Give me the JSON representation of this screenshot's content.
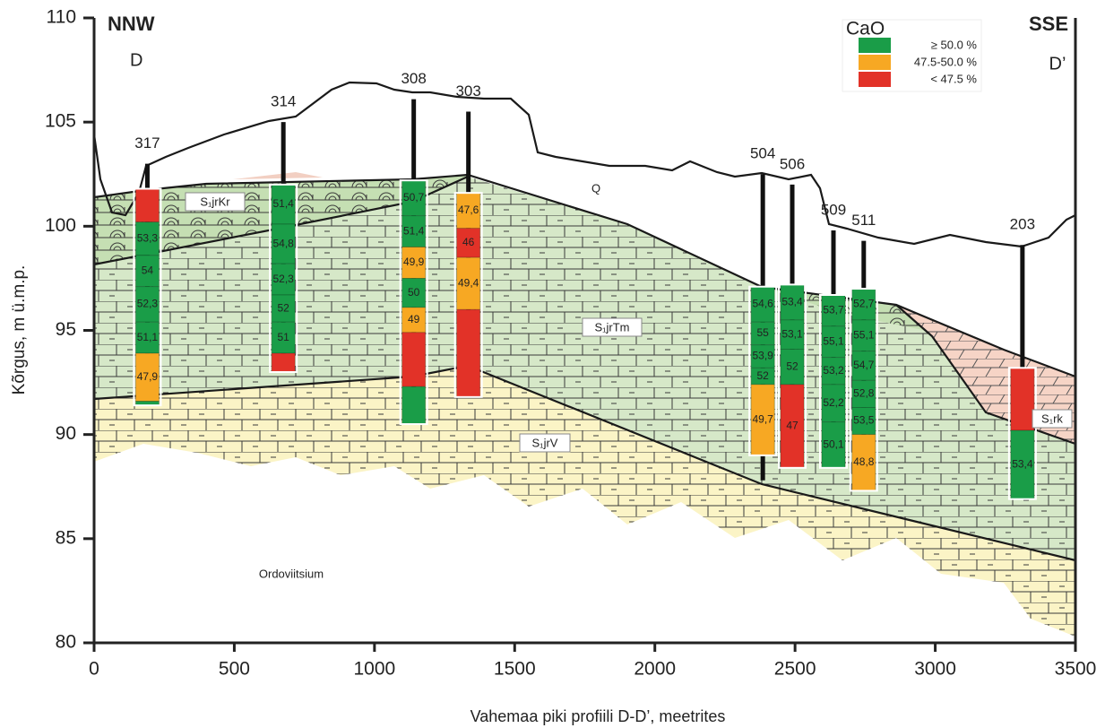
{
  "axes": {
    "xlabel": "Vahemaa piki profiili D-D’, meetrites",
    "ylabel": "Kõrgus, m ü.m.p.",
    "xlim": [
      0,
      3500
    ],
    "ylim": [
      80,
      110
    ],
    "xticks": [
      0,
      500,
      1000,
      1500,
      2000,
      2500,
      3000,
      3500
    ],
    "yticks": [
      80,
      85,
      90,
      95,
      100,
      105,
      110
    ]
  },
  "ends": {
    "left_direction": "NNW",
    "left_point": "D",
    "right_direction": "SSE",
    "right_point": "D’"
  },
  "legend": {
    "title": "CaO",
    "items": [
      {
        "label": "≥ 50.0 %",
        "color": "#1a9d48"
      },
      {
        "label": "47.5-50.0 %",
        "color": "#f7a823"
      },
      {
        "label": "< 47.5 %",
        "color": "#e23228"
      }
    ]
  },
  "units": {
    "kr": "S₁jrKr",
    "tm": "S₁jrTm",
    "v": "S₁jrV",
    "rk": "S₁rk",
    "q": "Q",
    "ord": "Ordoviitsium"
  },
  "boreholes": [
    {
      "name": "317",
      "x": 190,
      "top": 103.0,
      "bottom": 91.4,
      "segments": [
        {
          "top": 101.8,
          "bottom": 100.2,
          "color": "#e23228"
        },
        {
          "top": 100.2,
          "bottom": 98.6,
          "color": "#1a9d48",
          "label": "53,3"
        },
        {
          "top": 98.6,
          "bottom": 97.1,
          "color": "#1a9d48",
          "label": "54"
        },
        {
          "top": 97.1,
          "bottom": 95.4,
          "color": "#1a9d48",
          "label": "52,3"
        },
        {
          "top": 95.4,
          "bottom": 93.9,
          "color": "#1a9d48",
          "label": "51,1"
        },
        {
          "top": 93.9,
          "bottom": 91.6,
          "color": "#f7a823",
          "label": "47,9"
        },
        {
          "top": 91.6,
          "bottom": 91.4,
          "color": "#1a9d48"
        }
      ]
    },
    {
      "name": "314",
      "x": 675,
      "top": 105.0,
      "bottom": 93.0,
      "segments": [
        {
          "top": 102.0,
          "bottom": 100.1,
          "color": "#1a9d48",
          "label": "51,4"
        },
        {
          "top": 100.1,
          "bottom": 98.2,
          "color": "#1a9d48",
          "label": "54,8"
        },
        {
          "top": 98.2,
          "bottom": 96.7,
          "color": "#1a9d48",
          "label": "52,3"
        },
        {
          "top": 96.7,
          "bottom": 95.4,
          "color": "#1a9d48",
          "label": "52"
        },
        {
          "top": 95.4,
          "bottom": 93.9,
          "color": "#1a9d48",
          "label": "51"
        },
        {
          "top": 93.9,
          "bottom": 93.0,
          "color": "#e23228"
        }
      ]
    },
    {
      "name": "308",
      "x": 1140,
      "top": 106.1,
      "bottom": 90.5,
      "segments": [
        {
          "top": 102.2,
          "bottom": 100.5,
          "color": "#1a9d48",
          "label": "50,7"
        },
        {
          "top": 100.5,
          "bottom": 99.0,
          "color": "#1a9d48",
          "label": "51,4"
        },
        {
          "top": 99.0,
          "bottom": 97.5,
          "color": "#f7a823",
          "label": "49,9"
        },
        {
          "top": 97.5,
          "bottom": 96.1,
          "color": "#1a9d48",
          "label": "50"
        },
        {
          "top": 96.1,
          "bottom": 94.9,
          "color": "#f7a823",
          "label": "49"
        },
        {
          "top": 94.9,
          "bottom": 92.3,
          "color": "#e23228"
        },
        {
          "top": 92.3,
          "bottom": 90.5,
          "color": "#1a9d48"
        }
      ]
    },
    {
      "name": "303",
      "x": 1335,
      "top": 105.5,
      "bottom": 91.8,
      "segments": [
        {
          "top": 101.6,
          "bottom": 99.9,
          "color": "#f7a823",
          "label": "47,6"
        },
        {
          "top": 99.9,
          "bottom": 98.5,
          "color": "#e23228",
          "label": "46"
        },
        {
          "top": 98.5,
          "bottom": 96.0,
          "color": "#f7a823",
          "label": "49,4"
        },
        {
          "top": 96.0,
          "bottom": 91.8,
          "color": "#e23228"
        }
      ]
    },
    {
      "name": "504",
      "x": 2385,
      "top": 102.5,
      "bottom": 87.8,
      "segments": [
        {
          "top": 97.1,
          "bottom": 95.4,
          "color": "#1a9d48",
          "label": "54,6"
        },
        {
          "top": 95.4,
          "bottom": 94.3,
          "color": "#1a9d48",
          "label": "55"
        },
        {
          "top": 94.3,
          "bottom": 93.2,
          "color": "#1a9d48",
          "label": "53,9"
        },
        {
          "top": 93.2,
          "bottom": 92.4,
          "color": "#1a9d48",
          "label": "52"
        },
        {
          "top": 92.4,
          "bottom": 89.0,
          "color": "#f7a823",
          "label": "49,7"
        }
      ]
    },
    {
      "name": "506",
      "x": 2490,
      "top": 102.0,
      "bottom": 88.4,
      "segments": [
        {
          "top": 97.2,
          "bottom": 95.5,
          "color": "#1a9d48",
          "label": "53,4"
        },
        {
          "top": 95.5,
          "bottom": 94.1,
          "color": "#1a9d48",
          "label": "53,1"
        },
        {
          "top": 94.1,
          "bottom": 92.4,
          "color": "#1a9d48",
          "label": "52"
        },
        {
          "top": 92.4,
          "bottom": 88.4,
          "color": "#e23228",
          "label": "47"
        }
      ]
    },
    {
      "name": "509",
      "x": 2637,
      "top": 99.8,
      "bottom": 88.4,
      "segments": [
        {
          "top": 96.7,
          "bottom": 95.2,
          "color": "#1a9d48",
          "label": "53,7"
        },
        {
          "top": 95.2,
          "bottom": 93.7,
          "color": "#1a9d48",
          "label": "55,1"
        },
        {
          "top": 93.7,
          "bottom": 92.4,
          "color": "#1a9d48",
          "label": "53,2"
        },
        {
          "top": 92.4,
          "bottom": 90.6,
          "color": "#1a9d48",
          "label": "52,2"
        },
        {
          "top": 90.6,
          "bottom": 88.4,
          "color": "#1a9d48",
          "label": "50,1"
        }
      ]
    },
    {
      "name": "511",
      "x": 2745,
      "top": 99.3,
      "bottom": 87.3,
      "segments": [
        {
          "top": 97.0,
          "bottom": 95.5,
          "color": "#1a9d48",
          "label": "52,7"
        },
        {
          "top": 95.5,
          "bottom": 94.0,
          "color": "#1a9d48",
          "label": "55,1"
        },
        {
          "top": 94.0,
          "bottom": 92.6,
          "color": "#1a9d48",
          "label": "54,7"
        },
        {
          "top": 92.6,
          "bottom": 91.3,
          "color": "#1a9d48",
          "label": "52,8"
        },
        {
          "top": 91.3,
          "bottom": 90.0,
          "color": "#1a9d48",
          "label": "53,5"
        },
        {
          "top": 90.0,
          "bottom": 87.3,
          "color": "#f7a823",
          "label": "48,8"
        }
      ]
    },
    {
      "name": "203",
      "x": 3311,
      "top": 99.1,
      "bottom": 86.9,
      "segments": [
        {
          "top": 93.2,
          "bottom": 90.2,
          "color": "#e23228"
        },
        {
          "top": 90.2,
          "bottom": 86.9,
          "color": "#1a9d48",
          "label": "53,4"
        }
      ]
    }
  ]
}
